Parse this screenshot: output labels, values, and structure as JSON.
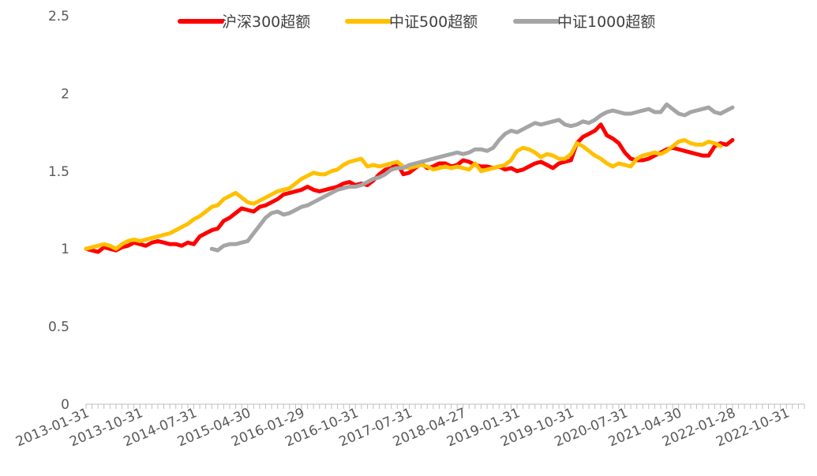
{
  "chart_data": {
    "type": "line",
    "title": "",
    "xlabel": "",
    "ylabel": "",
    "ylim": [
      0,
      2.5
    ],
    "y_ticks": [
      "0",
      "0.5",
      "1",
      "1.5",
      "2",
      "2.5"
    ],
    "x_tick_labels": [
      "2013-01-31",
      "2013-10-31",
      "2014-07-31",
      "2015-04-30",
      "2016-01-29",
      "2016-10-31",
      "2017-07-31",
      "2018-04-27",
      "2019-01-31",
      "2019-10-31",
      "2020-07-31",
      "2021-04-30",
      "2022-01-28",
      "2022-10-31"
    ],
    "x_start": "2013-01-31",
    "x_end": "2023-01-31",
    "grid": false,
    "legend_position": "top",
    "series": [
      {
        "name": "沪深300超额",
        "color": "#ff0000",
        "start": "2013-01-31",
        "values": [
          1.0,
          0.99,
          0.98,
          1.01,
          1.0,
          0.99,
          1.01,
          1.02,
          1.04,
          1.03,
          1.02,
          1.04,
          1.05,
          1.04,
          1.03,
          1.03,
          1.02,
          1.04,
          1.03,
          1.08,
          1.1,
          1.12,
          1.13,
          1.18,
          1.2,
          1.23,
          1.26,
          1.25,
          1.24,
          1.27,
          1.28,
          1.3,
          1.32,
          1.35,
          1.36,
          1.37,
          1.38,
          1.4,
          1.38,
          1.37,
          1.38,
          1.39,
          1.4,
          1.42,
          1.43,
          1.41,
          1.42,
          1.41,
          1.44,
          1.48,
          1.51,
          1.52,
          1.55,
          1.48,
          1.49,
          1.52,
          1.55,
          1.52,
          1.53,
          1.55,
          1.55,
          1.53,
          1.54,
          1.57,
          1.56,
          1.54,
          1.53,
          1.53,
          1.52,
          1.53,
          1.51,
          1.52,
          1.5,
          1.51,
          1.53,
          1.55,
          1.56,
          1.54,
          1.52,
          1.55,
          1.56,
          1.57,
          1.68,
          1.72,
          1.74,
          1.76,
          1.8,
          1.73,
          1.71,
          1.68,
          1.62,
          1.58,
          1.57,
          1.57,
          1.58,
          1.6,
          1.62,
          1.64,
          1.65,
          1.64,
          1.63,
          1.62,
          1.61,
          1.6,
          1.6,
          1.66,
          1.68,
          1.67,
          1.7
        ]
      },
      {
        "name": "中证500超额",
        "color": "#ffc000",
        "start": "2013-01-31",
        "values": [
          1.0,
          1.01,
          1.02,
          1.03,
          1.02,
          1.0,
          1.03,
          1.05,
          1.06,
          1.05,
          1.06,
          1.07,
          1.08,
          1.09,
          1.1,
          1.12,
          1.14,
          1.16,
          1.19,
          1.21,
          1.24,
          1.27,
          1.28,
          1.32,
          1.34,
          1.36,
          1.33,
          1.3,
          1.29,
          1.31,
          1.33,
          1.35,
          1.37,
          1.38,
          1.39,
          1.42,
          1.45,
          1.47,
          1.49,
          1.48,
          1.48,
          1.5,
          1.51,
          1.54,
          1.56,
          1.57,
          1.58,
          1.53,
          1.54,
          1.53,
          1.54,
          1.55,
          1.56,
          1.53,
          1.52,
          1.53,
          1.54,
          1.53,
          1.51,
          1.52,
          1.53,
          1.52,
          1.53,
          1.52,
          1.51,
          1.55,
          1.5,
          1.51,
          1.52,
          1.53,
          1.54,
          1.57,
          1.63,
          1.65,
          1.64,
          1.62,
          1.59,
          1.61,
          1.6,
          1.58,
          1.58,
          1.61,
          1.68,
          1.66,
          1.63,
          1.6,
          1.58,
          1.55,
          1.53,
          1.55,
          1.54,
          1.53,
          1.58,
          1.6,
          1.61,
          1.62,
          1.61,
          1.63,
          1.66,
          1.69,
          1.7,
          1.68,
          1.67,
          1.67,
          1.69,
          1.68,
          1.66
        ]
      },
      {
        "name": "中证1000超额",
        "color": "#a5a5a5",
        "start": "2014-10-31",
        "values": [
          1.0,
          0.99,
          1.02,
          1.03,
          1.03,
          1.04,
          1.05,
          1.1,
          1.15,
          1.2,
          1.23,
          1.24,
          1.22,
          1.23,
          1.25,
          1.27,
          1.28,
          1.3,
          1.32,
          1.34,
          1.36,
          1.38,
          1.39,
          1.4,
          1.4,
          1.41,
          1.43,
          1.45,
          1.46,
          1.48,
          1.51,
          1.52,
          1.52,
          1.54,
          1.55,
          1.56,
          1.57,
          1.58,
          1.59,
          1.6,
          1.61,
          1.62,
          1.61,
          1.62,
          1.64,
          1.64,
          1.63,
          1.65,
          1.7,
          1.74,
          1.76,
          1.75,
          1.77,
          1.79,
          1.81,
          1.8,
          1.81,
          1.82,
          1.83,
          1.8,
          1.79,
          1.8,
          1.82,
          1.81,
          1.83,
          1.86,
          1.88,
          1.89,
          1.88,
          1.87,
          1.87,
          1.88,
          1.89,
          1.9,
          1.88,
          1.88,
          1.93,
          1.9,
          1.87,
          1.86,
          1.88,
          1.89,
          1.9,
          1.91,
          1.88,
          1.87,
          1.89,
          1.91
        ]
      }
    ]
  }
}
